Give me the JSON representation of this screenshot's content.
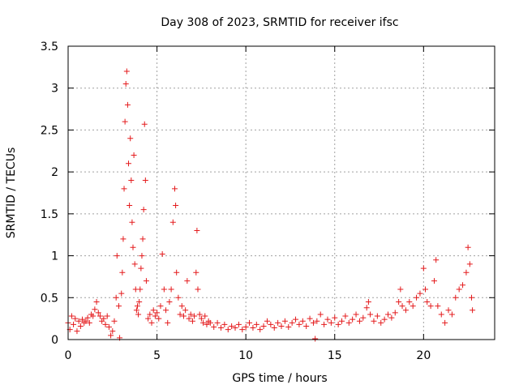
{
  "chart_data": {
    "type": "scatter",
    "title": "Day 308 of 2023, SRMTID for receiver ifsc",
    "xlabel": "GPS time / hours",
    "ylabel": "SRMTID / TECUs",
    "xlim": [
      0,
      24
    ],
    "ylim": [
      0,
      3.5
    ],
    "xticks": [
      0,
      5,
      10,
      15,
      20
    ],
    "xtick_labels": [
      "0",
      "5",
      "10",
      "15",
      "20"
    ],
    "yticks": [
      0,
      0.5,
      1,
      1.5,
      2,
      2.5,
      3,
      3.5
    ],
    "ytick_labels": [
      "0",
      "0.5",
      "1",
      "1.5",
      "2",
      "2.5",
      "3",
      "3.5"
    ],
    "grid": true,
    "marker": "+",
    "color": "#e41a1c",
    "series": [
      {
        "name": "SRMTID",
        "points": [
          [
            0.0,
            0.2
          ],
          [
            0.1,
            0.12
          ],
          [
            0.2,
            0.28
          ],
          [
            0.3,
            0.18
          ],
          [
            0.4,
            0.25
          ],
          [
            0.5,
            0.1
          ],
          [
            0.6,
            0.22
          ],
          [
            0.7,
            0.16
          ],
          [
            0.8,
            0.24
          ],
          [
            0.9,
            0.2
          ],
          [
            1.0,
            0.22
          ],
          [
            1.1,
            0.26
          ],
          [
            1.2,
            0.2
          ],
          [
            1.3,
            0.3
          ],
          [
            1.4,
            0.28
          ],
          [
            1.5,
            0.36
          ],
          [
            1.6,
            0.45
          ],
          [
            1.7,
            0.32
          ],
          [
            1.8,
            0.28
          ],
          [
            1.9,
            0.22
          ],
          [
            2.0,
            0.25
          ],
          [
            2.1,
            0.18
          ],
          [
            2.2,
            0.28
          ],
          [
            2.3,
            0.15
          ],
          [
            2.4,
            0.05
          ],
          [
            2.5,
            0.1
          ],
          [
            2.6,
            0.22
          ],
          [
            2.7,
            0.5
          ],
          [
            2.75,
            1.0
          ],
          [
            2.85,
            0.4
          ],
          [
            2.9,
            0.02
          ],
          [
            3.0,
            0.55
          ],
          [
            3.05,
            0.8
          ],
          [
            3.1,
            1.2
          ],
          [
            3.15,
            1.8
          ],
          [
            3.2,
            2.6
          ],
          [
            3.25,
            3.05
          ],
          [
            3.3,
            3.2
          ],
          [
            3.35,
            2.8
          ],
          [
            3.4,
            2.1
          ],
          [
            3.45,
            1.6
          ],
          [
            3.5,
            2.4
          ],
          [
            3.55,
            1.9
          ],
          [
            3.6,
            1.4
          ],
          [
            3.65,
            1.1
          ],
          [
            3.7,
            2.2
          ],
          [
            3.75,
            0.9
          ],
          [
            3.8,
            0.6
          ],
          [
            3.85,
            0.35
          ],
          [
            3.9,
            0.4
          ],
          [
            3.95,
            0.3
          ],
          [
            4.0,
            0.45
          ],
          [
            4.05,
            0.6
          ],
          [
            4.1,
            0.85
          ],
          [
            4.15,
            1.0
          ],
          [
            4.2,
            1.2
          ],
          [
            4.25,
            1.55
          ],
          [
            4.3,
            2.57
          ],
          [
            4.35,
            1.9
          ],
          [
            4.4,
            0.7
          ],
          [
            4.5,
            0.25
          ],
          [
            4.6,
            0.3
          ],
          [
            4.7,
            0.2
          ],
          [
            4.8,
            0.35
          ],
          [
            4.9,
            0.28
          ],
          [
            5.0,
            0.32
          ],
          [
            5.1,
            0.25
          ],
          [
            5.2,
            0.4
          ],
          [
            5.3,
            1.02
          ],
          [
            5.4,
            0.6
          ],
          [
            5.5,
            0.35
          ],
          [
            5.6,
            0.2
          ],
          [
            5.7,
            0.45
          ],
          [
            5.8,
            0.6
          ],
          [
            5.9,
            1.4
          ],
          [
            6.0,
            1.8
          ],
          [
            6.05,
            1.6
          ],
          [
            6.1,
            0.8
          ],
          [
            6.2,
            0.5
          ],
          [
            6.3,
            0.3
          ],
          [
            6.4,
            0.4
          ],
          [
            6.5,
            0.28
          ],
          [
            6.6,
            0.35
          ],
          [
            6.7,
            0.7
          ],
          [
            6.8,
            0.25
          ],
          [
            6.9,
            0.3
          ],
          [
            7.0,
            0.22
          ],
          [
            7.1,
            0.28
          ],
          [
            7.2,
            0.8
          ],
          [
            7.25,
            1.3
          ],
          [
            7.3,
            0.6
          ],
          [
            7.4,
            0.3
          ],
          [
            7.5,
            0.25
          ],
          [
            7.6,
            0.2
          ],
          [
            7.7,
            0.28
          ],
          [
            7.8,
            0.18
          ],
          [
            7.9,
            0.22
          ],
          [
            8.0,
            0.2
          ],
          [
            8.2,
            0.15
          ],
          [
            8.4,
            0.2
          ],
          [
            8.6,
            0.14
          ],
          [
            8.8,
            0.18
          ],
          [
            9.0,
            0.12
          ],
          [
            9.2,
            0.16
          ],
          [
            9.4,
            0.14
          ],
          [
            9.6,
            0.18
          ],
          [
            9.8,
            0.12
          ],
          [
            10.0,
            0.15
          ],
          [
            10.2,
            0.2
          ],
          [
            10.4,
            0.14
          ],
          [
            10.6,
            0.18
          ],
          [
            10.8,
            0.12
          ],
          [
            11.0,
            0.16
          ],
          [
            11.2,
            0.22
          ],
          [
            11.4,
            0.18
          ],
          [
            11.6,
            0.14
          ],
          [
            11.8,
            0.2
          ],
          [
            12.0,
            0.16
          ],
          [
            12.2,
            0.22
          ],
          [
            12.4,
            0.15
          ],
          [
            12.6,
            0.2
          ],
          [
            12.8,
            0.24
          ],
          [
            13.0,
            0.18
          ],
          [
            13.2,
            0.22
          ],
          [
            13.4,
            0.16
          ],
          [
            13.6,
            0.25
          ],
          [
            13.8,
            0.2
          ],
          [
            13.9,
            0.01
          ],
          [
            14.0,
            0.22
          ],
          [
            14.2,
            0.3
          ],
          [
            14.4,
            0.18
          ],
          [
            14.6,
            0.24
          ],
          [
            14.8,
            0.2
          ],
          [
            15.0,
            0.26
          ],
          [
            15.2,
            0.18
          ],
          [
            15.4,
            0.22
          ],
          [
            15.6,
            0.28
          ],
          [
            15.8,
            0.2
          ],
          [
            16.0,
            0.24
          ],
          [
            16.2,
            0.3
          ],
          [
            16.4,
            0.22
          ],
          [
            16.6,
            0.26
          ],
          [
            16.8,
            0.38
          ],
          [
            16.9,
            0.45
          ],
          [
            17.0,
            0.3
          ],
          [
            17.2,
            0.22
          ],
          [
            17.4,
            0.28
          ],
          [
            17.6,
            0.2
          ],
          [
            17.8,
            0.24
          ],
          [
            18.0,
            0.3
          ],
          [
            18.2,
            0.26
          ],
          [
            18.4,
            0.32
          ],
          [
            18.6,
            0.45
          ],
          [
            18.7,
            0.6
          ],
          [
            18.8,
            0.4
          ],
          [
            19.0,
            0.35
          ],
          [
            19.2,
            0.45
          ],
          [
            19.4,
            0.4
          ],
          [
            19.6,
            0.5
          ],
          [
            19.8,
            0.55
          ],
          [
            20.0,
            0.85
          ],
          [
            20.1,
            0.6
          ],
          [
            20.2,
            0.45
          ],
          [
            20.4,
            0.4
          ],
          [
            20.6,
            0.7
          ],
          [
            20.7,
            0.95
          ],
          [
            20.8,
            0.4
          ],
          [
            21.0,
            0.3
          ],
          [
            21.2,
            0.2
          ],
          [
            21.4,
            0.35
          ],
          [
            21.6,
            0.3
          ],
          [
            21.8,
            0.5
          ],
          [
            22.0,
            0.6
          ],
          [
            22.2,
            0.65
          ],
          [
            22.4,
            0.8
          ],
          [
            22.5,
            1.1
          ],
          [
            22.6,
            0.9
          ],
          [
            22.7,
            0.5
          ],
          [
            22.75,
            0.35
          ]
        ]
      }
    ]
  }
}
